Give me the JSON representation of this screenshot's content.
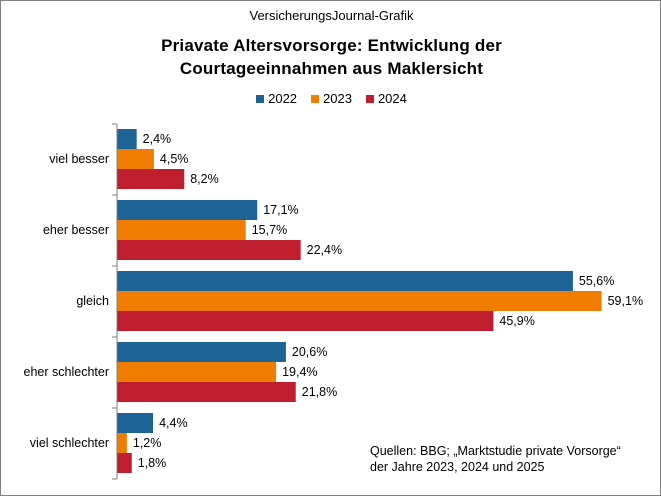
{
  "header": "VersicherungsJournal-Grafik",
  "title_lines": [
    "Priavate Altersvorsorge: Entwicklung der",
    "Courtageeinnahmen aus Maklersicht"
  ],
  "source_lines": [
    "Quellen: BBG; „Marktstudie private Vorsorge“",
    "der Jahre 2023, 2024 und 2025"
  ],
  "colors": {
    "2022": "#1d6396",
    "2023": "#f07c00",
    "2024": "#be1e2d"
  },
  "chart_data": {
    "type": "bar",
    "orientation": "horizontal",
    "title": "Priavate Altersvorsorge: Entwicklung der Courtageeinnahmen aus Maklersicht",
    "categories": [
      "viel besser",
      "eher besser",
      "gleich",
      "eher schlechter",
      "viel schlechter"
    ],
    "series": [
      {
        "name": "2022",
        "values": [
          2.4,
          17.1,
          55.6,
          20.6,
          4.4
        ],
        "labels": [
          "2,4%",
          "17,1%",
          "55,6%",
          "20,6%",
          "4,4%"
        ]
      },
      {
        "name": "2023",
        "values": [
          4.5,
          15.7,
          59.1,
          19.4,
          1.2
        ],
        "labels": [
          "4,5%",
          "15,7%",
          "59,1%",
          "19,4%",
          "1,2%"
        ]
      },
      {
        "name": "2024",
        "values": [
          8.2,
          22.4,
          45.9,
          21.8,
          1.8
        ],
        "labels": [
          "8,2%",
          "22,4%",
          "45,9%",
          "21,8%",
          "1,8%"
        ]
      }
    ],
    "xlim": [
      0,
      60
    ],
    "legend_position": "top-center",
    "grid": false,
    "unit": "%"
  }
}
